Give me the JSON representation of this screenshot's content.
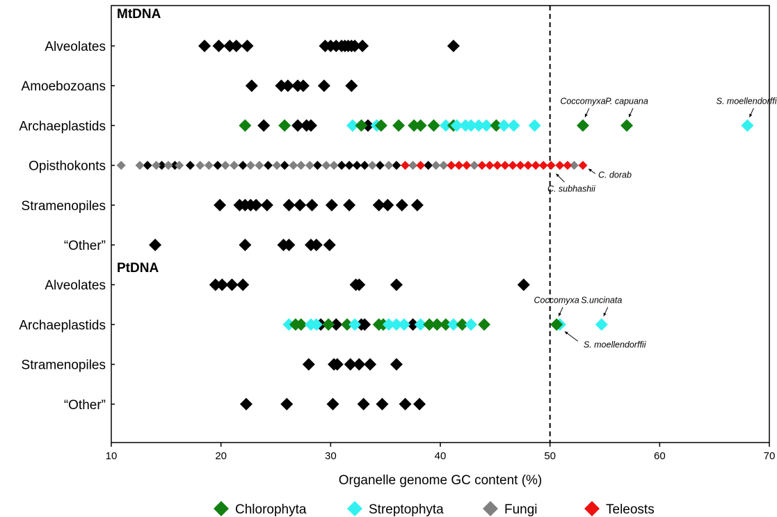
{
  "chart_data": {
    "type": "scatter",
    "xlabel": "Organelle genome GC content (%)",
    "ylabel": "",
    "xlim": [
      10,
      70
    ],
    "xticks": [
      10,
      20,
      30,
      40,
      50,
      60,
      70
    ],
    "reference_line": {
      "x": 50,
      "style": "dashed"
    },
    "grid": false,
    "legend_placement": "bottom",
    "sections": [
      {
        "label": "MtDNA",
        "before_row": 0
      },
      {
        "label": "PtDNA",
        "before_row": 6
      }
    ],
    "categories": [
      "Alveolates",
      "Amoebozoans",
      "Archaeplastids",
      "Opisthokonts",
      "Stramenopiles",
      "“Other”",
      "Alveolates",
      "Archaeplastids",
      "Stramenopiles",
      "“Other”"
    ],
    "series": [
      {
        "name": "Chlorophyta",
        "color": "#118011"
      },
      {
        "name": "Streptophyta",
        "color": "#33f0f0"
      },
      {
        "name": "Fungi",
        "color": "#808080"
      },
      {
        "name": "Teleosts",
        "color": "#ee1111"
      }
    ],
    "unclassified_color": "#000000",
    "points": [
      {
        "row": 0,
        "x": 18.5,
        "s": null
      },
      {
        "row": 0,
        "x": 19.8,
        "s": null
      },
      {
        "row": 0,
        "x": 20.8,
        "s": null
      },
      {
        "row": 0,
        "x": 21.4,
        "s": null
      },
      {
        "row": 0,
        "x": 22.4,
        "s": null
      },
      {
        "row": 0,
        "x": 29.5,
        "s": null
      },
      {
        "row": 0,
        "x": 30.0,
        "s": null
      },
      {
        "row": 0,
        "x": 30.5,
        "s": null
      },
      {
        "row": 0,
        "x": 31.0,
        "s": null
      },
      {
        "row": 0,
        "x": 31.3,
        "s": null
      },
      {
        "row": 0,
        "x": 31.6,
        "s": null
      },
      {
        "row": 0,
        "x": 31.9,
        "s": null
      },
      {
        "row": 0,
        "x": 32.2,
        "s": null
      },
      {
        "row": 0,
        "x": 32.9,
        "s": null
      },
      {
        "row": 0,
        "x": 41.2,
        "s": null
      },
      {
        "row": 1,
        "x": 22.8,
        "s": null
      },
      {
        "row": 1,
        "x": 25.5,
        "s": null
      },
      {
        "row": 1,
        "x": 26.1,
        "s": null
      },
      {
        "row": 1,
        "x": 27.0,
        "s": null
      },
      {
        "row": 1,
        "x": 27.5,
        "s": null
      },
      {
        "row": 1,
        "x": 29.4,
        "s": null
      },
      {
        "row": 1,
        "x": 31.9,
        "s": null
      },
      {
        "row": 2,
        "x": 22.2,
        "s": 0
      },
      {
        "row": 2,
        "x": 23.9,
        "s": null
      },
      {
        "row": 2,
        "x": 25.8,
        "s": 0
      },
      {
        "row": 2,
        "x": 27.0,
        "s": null
      },
      {
        "row": 2,
        "x": 27.8,
        "s": null
      },
      {
        "row": 2,
        "x": 28.2,
        "s": null
      },
      {
        "row": 2,
        "x": 32.0,
        "s": 1
      },
      {
        "row": 2,
        "x": 32.8,
        "s": 0
      },
      {
        "row": 2,
        "x": 33.4,
        "s": null
      },
      {
        "row": 2,
        "x": 34.2,
        "s": 1
      },
      {
        "row": 2,
        "x": 34.6,
        "s": 0
      },
      {
        "row": 2,
        "x": 36.2,
        "s": 0
      },
      {
        "row": 2,
        "x": 37.6,
        "s": 0
      },
      {
        "row": 2,
        "x": 38.2,
        "s": 0
      },
      {
        "row": 2,
        "x": 39.4,
        "s": 0
      },
      {
        "row": 2,
        "x": 40.5,
        "s": 1
      },
      {
        "row": 2,
        "x": 41.2,
        "s": 0
      },
      {
        "row": 2,
        "x": 41.5,
        "s": 1
      },
      {
        "row": 2,
        "x": 42.3,
        "s": 1
      },
      {
        "row": 2,
        "x": 42.8,
        "s": 1
      },
      {
        "row": 2,
        "x": 43.5,
        "s": 1
      },
      {
        "row": 2,
        "x": 44.2,
        "s": 1
      },
      {
        "row": 2,
        "x": 45.1,
        "s": 0
      },
      {
        "row": 2,
        "x": 45.8,
        "s": 1
      },
      {
        "row": 2,
        "x": 46.7,
        "s": 1
      },
      {
        "row": 2,
        "x": 48.6,
        "s": 1
      },
      {
        "row": 2,
        "x": 53.0,
        "s": 0
      },
      {
        "row": 2,
        "x": 57.0,
        "s": 0
      },
      {
        "row": 2,
        "x": 68.0,
        "s": 1
      },
      {
        "row": 3,
        "x": 10.9,
        "s": 2
      },
      {
        "row": 3,
        "x": 12.6,
        "s": 2
      },
      {
        "row": 3,
        "x": 13.3,
        "s": null
      },
      {
        "row": 3,
        "x": 14.1,
        "s": 2
      },
      {
        "row": 3,
        "x": 14.6,
        "s": null
      },
      {
        "row": 3,
        "x": 15.2,
        "s": 2
      },
      {
        "row": 3,
        "x": 15.8,
        "s": null
      },
      {
        "row": 3,
        "x": 16.2,
        "s": 2
      },
      {
        "row": 3,
        "x": 17.2,
        "s": null
      },
      {
        "row": 3,
        "x": 18.1,
        "s": 2
      },
      {
        "row": 3,
        "x": 18.9,
        "s": 2
      },
      {
        "row": 3,
        "x": 19.7,
        "s": null
      },
      {
        "row": 3,
        "x": 20.4,
        "s": 2
      },
      {
        "row": 3,
        "x": 21.2,
        "s": 2
      },
      {
        "row": 3,
        "x": 22.0,
        "s": null
      },
      {
        "row": 3,
        "x": 22.7,
        "s": 2
      },
      {
        "row": 3,
        "x": 23.5,
        "s": 2
      },
      {
        "row": 3,
        "x": 24.3,
        "s": null
      },
      {
        "row": 3,
        "x": 25.1,
        "s": 2
      },
      {
        "row": 3,
        "x": 25.8,
        "s": null
      },
      {
        "row": 3,
        "x": 26.6,
        "s": 2
      },
      {
        "row": 3,
        "x": 27.3,
        "s": 2
      },
      {
        "row": 3,
        "x": 28.1,
        "s": 2
      },
      {
        "row": 3,
        "x": 28.8,
        "s": null
      },
      {
        "row": 3,
        "x": 29.6,
        "s": 2
      },
      {
        "row": 3,
        "x": 30.3,
        "s": 2
      },
      {
        "row": 3,
        "x": 31.0,
        "s": null
      },
      {
        "row": 3,
        "x": 31.7,
        "s": null
      },
      {
        "row": 3,
        "x": 32.4,
        "s": null
      },
      {
        "row": 3,
        "x": 33.1,
        "s": null
      },
      {
        "row": 3,
        "x": 33.8,
        "s": 2
      },
      {
        "row": 3,
        "x": 34.5,
        "s": null
      },
      {
        "row": 3,
        "x": 35.3,
        "s": 2
      },
      {
        "row": 3,
        "x": 36.0,
        "s": null
      },
      {
        "row": 3,
        "x": 36.8,
        "s": 3
      },
      {
        "row": 3,
        "x": 37.5,
        "s": 2
      },
      {
        "row": 3,
        "x": 38.2,
        "s": 3
      },
      {
        "row": 3,
        "x": 38.9,
        "s": null
      },
      {
        "row": 3,
        "x": 39.6,
        "s": 2
      },
      {
        "row": 3,
        "x": 40.3,
        "s": 2
      },
      {
        "row": 3,
        "x": 41.0,
        "s": 3
      },
      {
        "row": 3,
        "x": 41.7,
        "s": 3
      },
      {
        "row": 3,
        "x": 42.4,
        "s": 3
      },
      {
        "row": 3,
        "x": 43.1,
        "s": 2
      },
      {
        "row": 3,
        "x": 43.8,
        "s": 3
      },
      {
        "row": 3,
        "x": 44.5,
        "s": 3
      },
      {
        "row": 3,
        "x": 45.2,
        "s": 3
      },
      {
        "row": 3,
        "x": 45.9,
        "s": 3
      },
      {
        "row": 3,
        "x": 46.6,
        "s": 3
      },
      {
        "row": 3,
        "x": 47.3,
        "s": 3
      },
      {
        "row": 3,
        "x": 48.0,
        "s": 3
      },
      {
        "row": 3,
        "x": 48.7,
        "s": 3
      },
      {
        "row": 3,
        "x": 49.4,
        "s": 3
      },
      {
        "row": 3,
        "x": 50.1,
        "s": 3
      },
      {
        "row": 3,
        "x": 50.9,
        "s": 3
      },
      {
        "row": 3,
        "x": 51.6,
        "s": 3
      },
      {
        "row": 3,
        "x": 52.2,
        "s": 2
      },
      {
        "row": 3,
        "x": 53.0,
        "s": 3
      },
      {
        "row": 4,
        "x": 19.9,
        "s": null
      },
      {
        "row": 4,
        "x": 21.7,
        "s": null
      },
      {
        "row": 4,
        "x": 22.2,
        "s": null
      },
      {
        "row": 4,
        "x": 22.7,
        "s": null
      },
      {
        "row": 4,
        "x": 23.2,
        "s": null
      },
      {
        "row": 4,
        "x": 24.2,
        "s": null
      },
      {
        "row": 4,
        "x": 26.2,
        "s": null
      },
      {
        "row": 4,
        "x": 27.2,
        "s": null
      },
      {
        "row": 4,
        "x": 28.3,
        "s": null
      },
      {
        "row": 4,
        "x": 30.1,
        "s": null
      },
      {
        "row": 4,
        "x": 31.7,
        "s": null
      },
      {
        "row": 4,
        "x": 34.4,
        "s": null
      },
      {
        "row": 4,
        "x": 35.2,
        "s": null
      },
      {
        "row": 4,
        "x": 36.5,
        "s": null
      },
      {
        "row": 4,
        "x": 37.9,
        "s": null
      },
      {
        "row": 5,
        "x": 14.0,
        "s": null
      },
      {
        "row": 5,
        "x": 22.2,
        "s": null
      },
      {
        "row": 5,
        "x": 25.7,
        "s": null
      },
      {
        "row": 5,
        "x": 26.2,
        "s": null
      },
      {
        "row": 5,
        "x": 28.2,
        "s": null
      },
      {
        "row": 5,
        "x": 28.7,
        "s": null
      },
      {
        "row": 5,
        "x": 29.9,
        "s": null
      },
      {
        "row": 6,
        "x": 19.5,
        "s": null
      },
      {
        "row": 6,
        "x": 20.1,
        "s": null
      },
      {
        "row": 6,
        "x": 21.0,
        "s": null
      },
      {
        "row": 6,
        "x": 22.0,
        "s": null
      },
      {
        "row": 6,
        "x": 32.3,
        "s": null
      },
      {
        "row": 6,
        "x": 32.6,
        "s": null
      },
      {
        "row": 6,
        "x": 36.0,
        "s": null
      },
      {
        "row": 6,
        "x": 47.6,
        "s": null
      },
      {
        "row": 7,
        "x": 26.2,
        "s": 1
      },
      {
        "row": 7,
        "x": 26.8,
        "s": 0
      },
      {
        "row": 7,
        "x": 27.3,
        "s": 0
      },
      {
        "row": 7,
        "x": 28.2,
        "s": 1
      },
      {
        "row": 7,
        "x": 28.7,
        "s": 1
      },
      {
        "row": 7,
        "x": 29.1,
        "s": null
      },
      {
        "row": 7,
        "x": 29.8,
        "s": 0
      },
      {
        "row": 7,
        "x": 30.5,
        "s": null
      },
      {
        "row": 7,
        "x": 31.5,
        "s": 0
      },
      {
        "row": 7,
        "x": 32.2,
        "s": 1
      },
      {
        "row": 7,
        "x": 32.8,
        "s": null
      },
      {
        "row": 7,
        "x": 33.1,
        "s": null
      },
      {
        "row": 7,
        "x": 34.4,
        "s": 0
      },
      {
        "row": 7,
        "x": 34.8,
        "s": 0
      },
      {
        "row": 7,
        "x": 35.3,
        "s": 1
      },
      {
        "row": 7,
        "x": 36.0,
        "s": 1
      },
      {
        "row": 7,
        "x": 36.7,
        "s": 1
      },
      {
        "row": 7,
        "x": 37.5,
        "s": null
      },
      {
        "row": 7,
        "x": 38.2,
        "s": 1
      },
      {
        "row": 7,
        "x": 39.0,
        "s": 0
      },
      {
        "row": 7,
        "x": 39.7,
        "s": 0
      },
      {
        "row": 7,
        "x": 40.5,
        "s": 0
      },
      {
        "row": 7,
        "x": 41.2,
        "s": 1
      },
      {
        "row": 7,
        "x": 42.0,
        "s": 0
      },
      {
        "row": 7,
        "x": 42.8,
        "s": 1
      },
      {
        "row": 7,
        "x": 44.0,
        "s": 0
      },
      {
        "row": 7,
        "x": 50.9,
        "s": 1
      },
      {
        "row": 7,
        "x": 50.6,
        "s": 0
      },
      {
        "row": 7,
        "x": 54.7,
        "s": 1
      },
      {
        "row": 8,
        "x": 28.0,
        "s": null
      },
      {
        "row": 8,
        "x": 30.3,
        "s": null
      },
      {
        "row": 8,
        "x": 30.6,
        "s": null
      },
      {
        "row": 8,
        "x": 31.8,
        "s": null
      },
      {
        "row": 8,
        "x": 32.6,
        "s": null
      },
      {
        "row": 8,
        "x": 33.6,
        "s": null
      },
      {
        "row": 8,
        "x": 36.0,
        "s": null
      },
      {
        "row": 9,
        "x": 22.3,
        "s": null
      },
      {
        "row": 9,
        "x": 26.0,
        "s": null
      },
      {
        "row": 9,
        "x": 30.2,
        "s": null
      },
      {
        "row": 9,
        "x": 33.0,
        "s": null
      },
      {
        "row": 9,
        "x": 34.7,
        "s": null
      },
      {
        "row": 9,
        "x": 36.8,
        "s": null
      },
      {
        "row": 9,
        "x": 38.1,
        "s": null
      }
    ],
    "annotations": [
      {
        "text": "Coccomyxa",
        "row": 2,
        "x": 53.0,
        "pos": "above"
      },
      {
        "text": "P. capuana",
        "row": 2,
        "x": 57.0,
        "pos": "above"
      },
      {
        "text": "S. moellendorffii",
        "row": 2,
        "x": 68.0,
        "pos": "above"
      },
      {
        "text": "C. dorab",
        "row": 3,
        "x": 53.0,
        "pos": "below-right"
      },
      {
        "text": "C. subhashii",
        "row": 3,
        "x": 52.2,
        "pos": "below-left"
      },
      {
        "text": "Coccomyxa",
        "row": 7,
        "x": 50.6,
        "pos": "above"
      },
      {
        "text": "S.uncinata",
        "row": 7,
        "x": 54.7,
        "pos": "above"
      },
      {
        "text": "S. moellendorffii",
        "row": 7,
        "x": 50.9,
        "pos": "below-right"
      }
    ]
  }
}
